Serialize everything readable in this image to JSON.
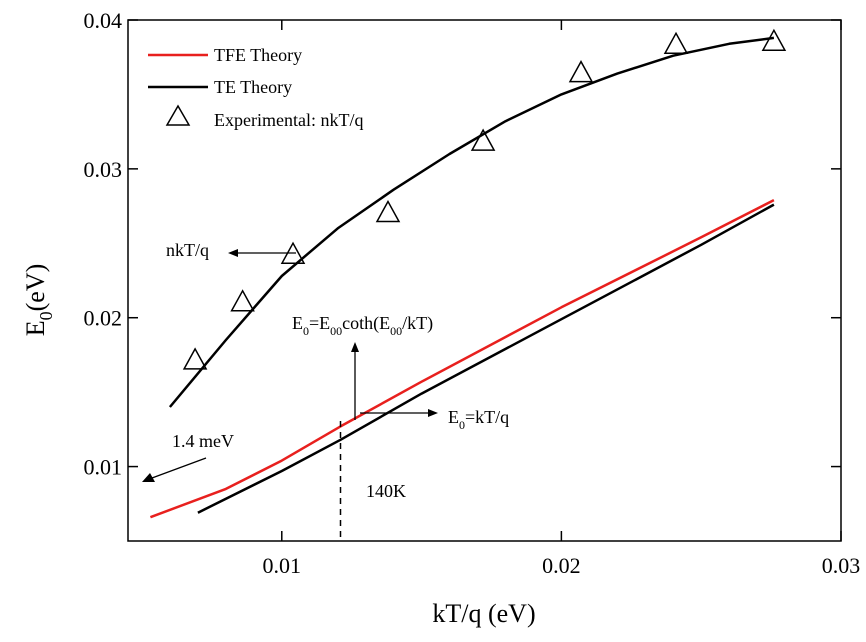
{
  "chart_data": {
    "type": "line",
    "xlabel": "kT/q (eV)",
    "ylabel": "E0(eV)",
    "xlim": [
      0.0045,
      0.03
    ],
    "ylim": [
      0.005,
      0.04
    ],
    "x_ticks": [
      0.01,
      0.02,
      0.03
    ],
    "x_tick_labels": [
      "0.01",
      "0.02",
      "0.03"
    ],
    "y_ticks": [
      0.01,
      0.02,
      0.03,
      0.04
    ],
    "y_tick_labels": [
      "0.01",
      "0.02",
      "0.03",
      "0.04"
    ],
    "legend_position": "top-left",
    "series": [
      {
        "name": "TFE Theory",
        "kind": "line",
        "color": "#e8201e",
        "x": [
          0.0053,
          0.008,
          0.01,
          0.0121,
          0.015,
          0.02,
          0.025,
          0.0276
        ],
        "y": [
          0.0066,
          0.0085,
          0.0104,
          0.0127,
          0.0157,
          0.0207,
          0.0254,
          0.0279
        ]
      },
      {
        "name": "TE Theory",
        "kind": "line",
        "color": "#000000",
        "x": [
          0.007,
          0.01,
          0.0121,
          0.015,
          0.02,
          0.025,
          0.0276
        ],
        "y": [
          0.0069,
          0.0097,
          0.0118,
          0.0149,
          0.0199,
          0.0249,
          0.0276
        ]
      },
      {
        "name": "",
        "kind": "line",
        "color": "#000000",
        "x": [
          0.006,
          0.008,
          0.01,
          0.012,
          0.014,
          0.016,
          0.018,
          0.02,
          0.022,
          0.024,
          0.026,
          0.0276
        ],
        "y": [
          0.014,
          0.0185,
          0.0228,
          0.026,
          0.0286,
          0.031,
          0.0332,
          0.035,
          0.0364,
          0.0376,
          0.0384,
          0.0388
        ]
      },
      {
        "name": "Experimental: nkT/q",
        "kind": "scatter",
        "marker": "open-triangle",
        "color": "#000000",
        "x": [
          0.0069,
          0.0086,
          0.0104,
          0.0138,
          0.0172,
          0.0207,
          0.0241,
          0.0276
        ],
        "y": [
          0.0171,
          0.021,
          0.0242,
          0.027,
          0.0318,
          0.0364,
          0.0383,
          0.0385
        ]
      }
    ],
    "annotations": {
      "nkt_label": "nkT/q",
      "coth_formula": {
        "base": "E",
        "sub1": "0",
        "eq": "=E",
        "sub2": "00",
        "mid": "coth(E",
        "sub3": "00",
        "tail": "/kT)"
      },
      "kt_formula": {
        "base": "E",
        "sub1": "0",
        "tail": "=kT/q"
      },
      "mev_label": "1.4 meV",
      "temp_label": "140K",
      "temp_x": 0.0121
    }
  }
}
